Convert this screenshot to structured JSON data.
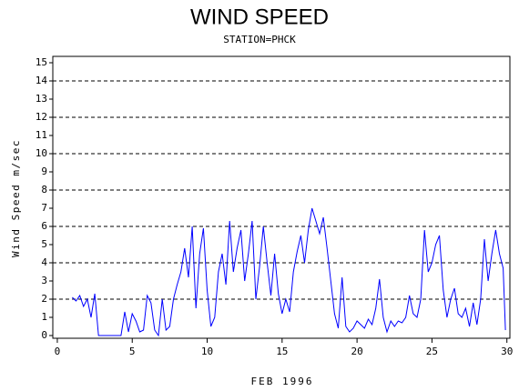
{
  "chart_data": {
    "type": "line",
    "title": "WIND SPEED",
    "subtitle": "STATION=PHCK",
    "xlabel": "FEB 1996",
    "ylabel": "Wind Speed m/sec",
    "xlim": [
      -0.3,
      30.2
    ],
    "ylim": [
      -0.15,
      15.35
    ],
    "xticks": [
      0,
      5,
      10,
      15,
      20,
      25,
      30
    ],
    "yticks": [
      0,
      1,
      2,
      3,
      4,
      5,
      6,
      7,
      8,
      9,
      10,
      11,
      12,
      13,
      14,
      15
    ],
    "grid_lines": [
      2,
      4,
      6,
      8,
      10,
      12,
      14
    ],
    "series": [
      {
        "color": "#0000ff",
        "x": [
          1,
          1.25,
          1.5,
          1.75,
          2,
          2.25,
          2.5,
          2.75,
          3,
          3.25,
          3.5,
          3.75,
          4,
          4.25,
          4.5,
          4.75,
          5,
          5.25,
          5.5,
          5.75,
          6,
          6.25,
          6.5,
          6.75,
          7,
          7.25,
          7.5,
          7.75,
          8,
          8.25,
          8.5,
          8.75,
          9,
          9.25,
          9.5,
          9.75,
          10,
          10.25,
          10.5,
          10.75,
          11,
          11.25,
          11.5,
          11.75,
          12,
          12.25,
          12.5,
          12.75,
          13,
          13.25,
          13.5,
          13.75,
          14,
          14.25,
          14.5,
          14.75,
          15,
          15.25,
          15.5,
          15.75,
          16,
          16.25,
          16.5,
          16.75,
          17,
          17.25,
          17.5,
          17.75,
          18,
          18.25,
          18.5,
          18.75,
          19,
          19.25,
          19.5,
          19.75,
          20,
          20.25,
          20.5,
          20.75,
          21,
          21.25,
          21.5,
          21.75,
          22,
          22.25,
          22.5,
          22.75,
          23,
          23.25,
          23.5,
          23.75,
          24,
          24.25,
          24.5,
          24.75,
          25,
          25.25,
          25.5,
          25.75,
          26,
          26.25,
          26.5,
          26.75,
          27,
          27.25,
          27.5,
          27.75,
          28,
          28.25,
          28.5,
          28.75,
          29,
          29.25,
          29.5,
          29.75,
          29.9
        ],
        "values": [
          2.1,
          1.9,
          2.2,
          1.6,
          2.0,
          1.0,
          2.3,
          0,
          0,
          0,
          0,
          0,
          0,
          0,
          1.3,
          0.2,
          1.2,
          0.8,
          0.2,
          0.3,
          2.2,
          1.8,
          0.3,
          0,
          2.0,
          0.3,
          0.5,
          2.0,
          2.8,
          3.5,
          4.8,
          3.2,
          6.0,
          1.5,
          4.5,
          5.9,
          2.5,
          0.5,
          1.0,
          3.5,
          4.5,
          2.8,
          6.3,
          3.5,
          4.8,
          5.8,
          3.0,
          4.5,
          6.3,
          2.0,
          3.8,
          6.0,
          4.0,
          2.2,
          4.5,
          2.3,
          1.2,
          2.0,
          1.3,
          3.5,
          4.6,
          5.5,
          4.0,
          5.8,
          7.0,
          6.3,
          5.6,
          6.5,
          4.8,
          3.0,
          1.2,
          0.4,
          3.2,
          0.5,
          0.2,
          0.4,
          0.8,
          0.6,
          0.4,
          0.9,
          0.6,
          1.5,
          3.1,
          1.0,
          0.2,
          0.8,
          0.5,
          0.8,
          0.7,
          1.0,
          2.2,
          1.2,
          1.0,
          2.0,
          5.8,
          3.5,
          4.0,
          5.0,
          5.5,
          2.5,
          1.0,
          2.0,
          2.6,
          1.2,
          1.0,
          1.5,
          0.5,
          1.8,
          0.6,
          2.0,
          5.3,
          3.0,
          4.5,
          5.8,
          4.5,
          3.7,
          0.3
        ]
      }
    ]
  }
}
